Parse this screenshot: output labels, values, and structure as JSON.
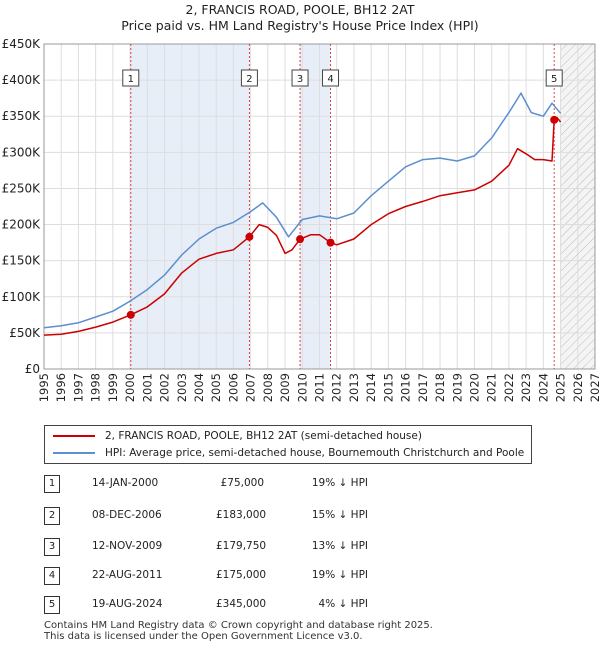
{
  "title": "2, FRANCIS ROAD, POOLE, BH12 2AT",
  "subtitle": "Price paid vs. HM Land Registry's House Price Index (HPI)",
  "colors": {
    "property": "#cc0000",
    "hpi": "#5b8fd0",
    "shade": "#e8eef8",
    "vline": "#dd4444"
  },
  "chart_data": {
    "type": "line",
    "xlim": [
      1995,
      2027
    ],
    "ylim": [
      0,
      450000
    ],
    "yticks": [
      "£0",
      "£50K",
      "£100K",
      "£150K",
      "£200K",
      "£250K",
      "£300K",
      "£350K",
      "£400K",
      "£450K"
    ],
    "xticks": [
      "1995",
      "1996",
      "1997",
      "1998",
      "1999",
      "2000",
      "2001",
      "2002",
      "2003",
      "2004",
      "2005",
      "2006",
      "2007",
      "2008",
      "2009",
      "2010",
      "2011",
      "2012",
      "2013",
      "2014",
      "2015",
      "2016",
      "2017",
      "2018",
      "2019",
      "2020",
      "2021",
      "2022",
      "2023",
      "2024",
      "2025",
      "2026",
      "2027"
    ],
    "shaded_periods": [
      [
        2000.04,
        2006.93
      ],
      [
        2009.87,
        2011.64
      ]
    ],
    "future_from": 2025.0,
    "series": [
      {
        "name": "2, FRANCIS ROAD, POOLE, BH12 2AT (semi-detached house)",
        "x": [
          1995,
          1996,
          1997,
          1998,
          1999,
          2000.04,
          2001,
          2002,
          2003,
          2004,
          2005,
          2006,
          2006.93,
          2007.5,
          2008,
          2008.5,
          2009,
          2009.4,
          2009.87,
          2010.5,
          2011,
          2011.64,
          2012,
          2013,
          2014,
          2015,
          2016,
          2017,
          2018,
          2019,
          2020,
          2021,
          2022,
          2022.5,
          2023,
          2023.5,
          2024,
          2024.5,
          2024.63,
          2024.8,
          2025
        ],
        "y": [
          47000,
          48000,
          52000,
          58000,
          65000,
          75000,
          86000,
          104000,
          133000,
          152000,
          160000,
          165000,
          183000,
          200000,
          196000,
          185000,
          160000,
          165000,
          179750,
          186000,
          186000,
          175000,
          172000,
          180000,
          200000,
          215000,
          225000,
          232000,
          240000,
          244000,
          248000,
          260000,
          282000,
          305000,
          298000,
          290000,
          290000,
          288000,
          345000,
          348000,
          342000
        ]
      },
      {
        "name": "HPI: Average price, semi-detached house, Bournemouth Christchurch and Poole",
        "x": [
          1995,
          1996,
          1997,
          1998,
          1999,
          2000,
          2001,
          2002,
          2003,
          2004,
          2005,
          2006,
          2007,
          2007.7,
          2008.5,
          2009.2,
          2010,
          2011,
          2012,
          2013,
          2014,
          2015,
          2016,
          2017,
          2018,
          2019,
          2020,
          2021,
          2022,
          2022.7,
          2023.3,
          2024,
          2024.5,
          2025
        ],
        "y": [
          57000,
          60000,
          64000,
          72000,
          80000,
          94000,
          110000,
          130000,
          158000,
          180000,
          195000,
          203000,
          218000,
          230000,
          210000,
          183000,
          207000,
          212000,
          208000,
          216000,
          240000,
          260000,
          280000,
          290000,
          292000,
          288000,
          295000,
          320000,
          355000,
          382000,
          355000,
          350000,
          368000,
          354000
        ]
      }
    ],
    "sales": [
      {
        "label": "1",
        "x": 2000.04,
        "y": 75000
      },
      {
        "label": "2",
        "x": 2006.93,
        "y": 183000
      },
      {
        "label": "3",
        "x": 2009.87,
        "y": 179750
      },
      {
        "label": "4",
        "x": 2011.64,
        "y": 175000
      },
      {
        "label": "5",
        "x": 2024.63,
        "y": 345000
      }
    ]
  },
  "legend": [
    "2, FRANCIS ROAD, POOLE, BH12 2AT (semi-detached house)",
    "HPI: Average price, semi-detached house, Bournemouth Christchurch and Poole"
  ],
  "transactions": [
    {
      "num": "1",
      "date": "14-JAN-2000",
      "price": "£75,000",
      "hpi": "19% ↓ HPI"
    },
    {
      "num": "2",
      "date": "08-DEC-2006",
      "price": "£183,000",
      "hpi": "15% ↓ HPI"
    },
    {
      "num": "3",
      "date": "12-NOV-2009",
      "price": "£179,750",
      "hpi": "13% ↓ HPI"
    },
    {
      "num": "4",
      "date": "22-AUG-2011",
      "price": "£175,000",
      "hpi": "19% ↓ HPI"
    },
    {
      "num": "5",
      "date": "19-AUG-2024",
      "price": "£345,000",
      "hpi": "4% ↓ HPI"
    }
  ],
  "footer": {
    "line1": "Contains HM Land Registry data © Crown copyright and database right 2025.",
    "line2": "This data is licensed under the Open Government Licence v3.0."
  }
}
